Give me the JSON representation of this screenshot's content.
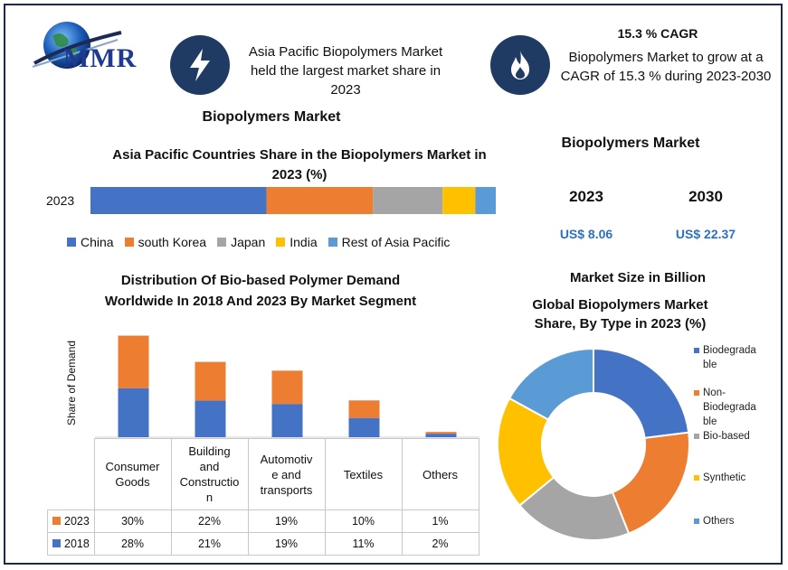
{
  "brand": {
    "name": "MMR"
  },
  "header": {
    "highlight_text": "Asia Pacific Biopolymers Market held the largest market share in 2023",
    "cagr_title": "15.3 % CAGR",
    "cagr_text": "Biopolymers Market to grow at a CAGR of 15.3 % during 2023-2030"
  },
  "left_title": "Biopolymers Market",
  "right_title": "Biopolymers Market",
  "market_size": {
    "year1": "2023",
    "year2": "2030",
    "value1": "US$ 8.06",
    "value2": "US$ 22.37",
    "caption": "Market Size in Billion"
  },
  "colors": {
    "blue": "#4472c4",
    "orange": "#ed7d31",
    "gray": "#a5a5a5",
    "yellow": "#ffc000",
    "lightblue": "#5b9bd5",
    "navy": "#1f3a63",
    "value_blue": "#2e6fc4"
  },
  "chart_data": [
    {
      "type": "bar",
      "orientation": "horizontal-stacked",
      "title": "Asia Pacific Countries Share in the Biopolymers Market in 2023 (%)",
      "categories": [
        "2023"
      ],
      "series": [
        {
          "name": "China",
          "values": [
            43
          ],
          "color": "#4472c4"
        },
        {
          "name": "south Korea",
          "values": [
            26
          ],
          "color": "#ed7d31"
        },
        {
          "name": "Japan",
          "values": [
            17
          ],
          "color": "#a5a5a5"
        },
        {
          "name": "India",
          "values": [
            8
          ],
          "color": "#ffc000"
        },
        {
          "name": "Rest of Asia Pacific",
          "values": [
            5
          ],
          "color": "#5b9bd5"
        }
      ],
      "legend": "bottom"
    },
    {
      "type": "bar",
      "orientation": "vertical-stacked",
      "title": "Distribution  Of Bio-based Polymer Demand Worldwide  In 2018 And 2023 By Market Segment",
      "ylabel": "Share of Demand",
      "categories": [
        "Consumer Goods",
        "Building and Construction",
        "Automotive and transports",
        "Textiles",
        "Others"
      ],
      "category_lines": [
        [
          "Consumer",
          "Goods"
        ],
        [
          "Building",
          "and",
          "Constructio",
          "n"
        ],
        [
          "Automotiv",
          "e and",
          "transports"
        ],
        [
          "Textiles"
        ],
        [
          "Others"
        ]
      ],
      "series": [
        {
          "name": "2018",
          "values": [
            28,
            21,
            19,
            11,
            2
          ],
          "labels": [
            "28%",
            "21%",
            "19%",
            "11%",
            "2%"
          ],
          "color": "#4472c4"
        },
        {
          "name": "2023",
          "values": [
            30,
            22,
            19,
            10,
            1
          ],
          "labels": [
            "30%",
            "22%",
            "19%",
            "10%",
            "1%"
          ],
          "color": "#ed7d31"
        }
      ],
      "ylim": [
        0,
        65
      ],
      "data_table": true
    },
    {
      "type": "pie",
      "variant": "doughnut",
      "title": "Global Biopolymers Market Share, By Type in 2023 (%)",
      "categories": [
        "Biodegradable",
        "Non-Biodegradable",
        "Bio-based",
        "Synthetic",
        "Others"
      ],
      "legend_lines": [
        [
          "Biodegrada",
          "ble"
        ],
        [
          "Non-",
          "Biodegrada",
          "ble"
        ],
        [
          "Bio-based"
        ],
        [
          "Synthetic"
        ],
        [
          "Others"
        ]
      ],
      "values": [
        23,
        21,
        20,
        19,
        17
      ],
      "colors": [
        "#4472c4",
        "#ed7d31",
        "#a5a5a5",
        "#ffc000",
        "#5b9bd5"
      ],
      "legend": "right"
    }
  ]
}
